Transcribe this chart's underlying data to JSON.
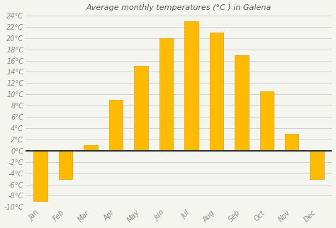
{
  "title": "Average monthly temperatures (°C ) in Galena",
  "months": [
    "Jan",
    "Feb",
    "Mar",
    "Apr",
    "May",
    "Jun",
    "Jul",
    "Aug",
    "Sep",
    "Oct",
    "Nov",
    "Dec"
  ],
  "values": [
    -9,
    -5,
    1,
    9,
    15,
    20,
    23,
    21,
    17,
    10.5,
    3,
    -5
  ],
  "bar_color": "#FFBB00",
  "bar_edge_color": "#E8A000",
  "background_color": "#f5f5f0",
  "plot_bg_color": "#f5f5f0",
  "grid_color": "#cccccc",
  "ylim": [
    -10,
    24
  ],
  "yticks": [
    -10,
    -8,
    -6,
    -4,
    -2,
    0,
    2,
    4,
    6,
    8,
    10,
    12,
    14,
    16,
    18,
    20,
    22,
    24
  ],
  "title_fontsize": 8,
  "tick_fontsize": 7,
  "zero_line_color": "#333333",
  "tick_color": "#888888"
}
